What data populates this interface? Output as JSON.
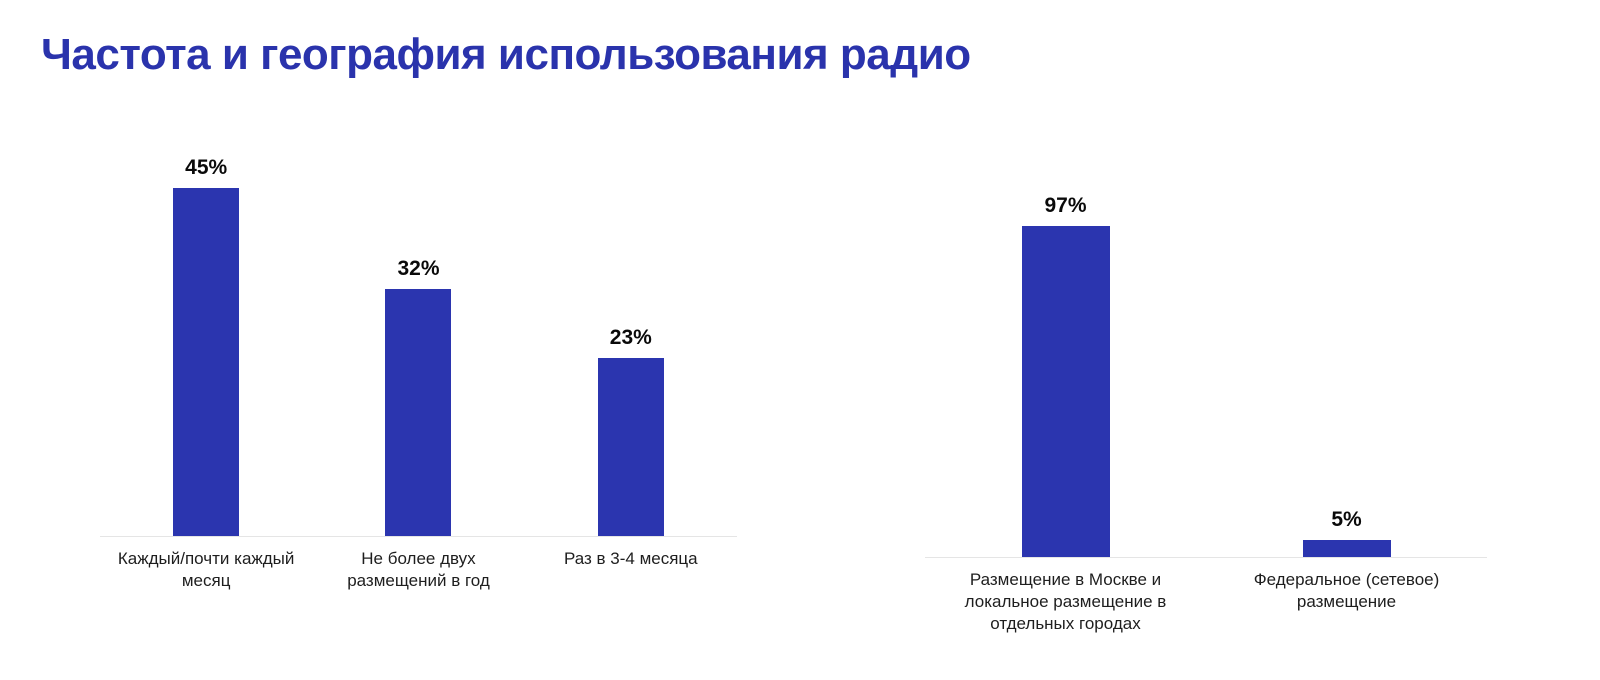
{
  "page": {
    "title": "Частота и география использования радио"
  },
  "colors": {
    "title": "#2A33AC",
    "bar": "#2B35AF",
    "axis_line": "#E5E5E5",
    "category_text": "#1E1E1E",
    "value_text": "#0A0A0A"
  },
  "chart_data": [
    {
      "type": "bar",
      "categories": [
        "Каждый/почти каждый месяц",
        "Не более двух размещений в год",
        "Раз в 3-4 месяца"
      ],
      "values": [
        45,
        32,
        23
      ],
      "value_labels": [
        "45%",
        "32%",
        "23%"
      ],
      "ylim": [
        0,
        100
      ],
      "grid": false,
      "legend": "none",
      "bar_color": "#2B35AF"
    },
    {
      "type": "bar",
      "categories": [
        "Размещение в Москве и локальное размещение в отдельных городах",
        "Федеральное (сетевое) размещение"
      ],
      "values": [
        97,
        5
      ],
      "value_labels": [
        "97%",
        "5%"
      ],
      "ylim": [
        0,
        100
      ],
      "grid": false,
      "legend": "none",
      "bar_color": "#2B35AF"
    }
  ]
}
